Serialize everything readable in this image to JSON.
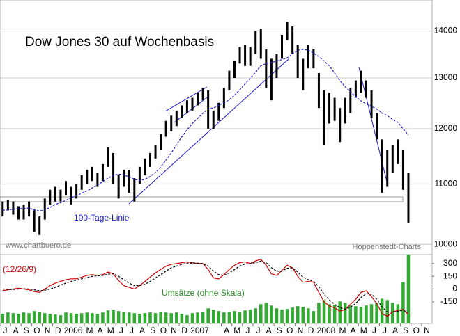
{
  "chart_data": {
    "type": "ohlc",
    "title": "Dow Jones 30 auf Wochenbasis",
    "source_left": "www.chartbuero.de",
    "source_right": "Hoppenstedt-Charts",
    "categories": [
      "J",
      null,
      "A",
      null,
      "S",
      null,
      "O",
      null,
      "N",
      null,
      "D",
      null,
      "2006",
      null,
      null,
      null,
      "M",
      null,
      "A",
      null,
      "M",
      null,
      "J",
      null,
      "J",
      null,
      "A",
      null,
      "S",
      null,
      "O",
      null,
      "N",
      null,
      "D",
      null,
      "2007",
      null,
      null,
      null,
      null,
      null,
      "A",
      null,
      "M",
      null,
      "J",
      null,
      "J",
      null,
      "A",
      null,
      "S",
      null,
      "O",
      null,
      "N",
      null,
      "D",
      null,
      "2008",
      null,
      null,
      null,
      "M",
      null,
      "A",
      null,
      "M",
      null,
      "J",
      null,
      "J",
      null,
      "A",
      null,
      "S",
      null,
      "O",
      null,
      "N",
      null
    ],
    "high": [
      10700,
      10720,
      10700,
      10620,
      10650,
      10700,
      10550,
      10450,
      10750,
      10900,
      10950,
      10900,
      11050,
      10950,
      11000,
      11150,
      11250,
      11300,
      11200,
      11350,
      11650,
      11550,
      11150,
      11250,
      11250,
      11100,
      11300,
      11450,
      11550,
      11700,
      11900,
      12150,
      12250,
      12350,
      12450,
      12550,
      12600,
      12700,
      12800,
      12750,
      12350,
      12500,
      12800,
      13150,
      13350,
      13650,
      13700,
      13650,
      14000,
      14050,
      13600,
      13400,
      13500,
      13900,
      14200,
      14100,
      13700,
      13400,
      13700,
      13600,
      13100,
      12750,
      12700,
      12600,
      12400,
      12600,
      12800,
      12950,
      13150,
      12950,
      12750,
      12300,
      11800,
      11600,
      11700,
      11800,
      11600,
      11200,
      null,
      null,
      null,
      null
    ],
    "low": [
      10450,
      10550,
      10480,
      10400,
      10400,
      10450,
      10200,
      10150,
      10400,
      10650,
      10700,
      10700,
      10800,
      10650,
      10750,
      10900,
      11000,
      11050,
      10950,
      11050,
      11300,
      11000,
      10750,
      10950,
      10850,
      10700,
      11000,
      11150,
      11300,
      11450,
      11600,
      11850,
      11950,
      12050,
      12200,
      12300,
      12350,
      12450,
      12550,
      12000,
      12000,
      12150,
      12400,
      12750,
      13000,
      13300,
      13250,
      13250,
      13500,
      13400,
      12800,
      12550,
      13000,
      13400,
      13800,
      13500,
      13000,
      12750,
      13200,
      13200,
      12400,
      11700,
      12100,
      12150,
      11750,
      12100,
      12300,
      12600,
      12700,
      12600,
      12200,
      11800,
      10850,
      10950,
      11200,
      11350,
      10900,
      10350,
      null,
      null,
      null,
      null
    ],
    "color": "#000000",
    "ylim": [
      9840,
      14700
    ],
    "yticks": [
      10000,
      11000,
      12000,
      13000,
      14000
    ],
    "log": true,
    "grid": true,
    "moving_average": {
      "name": "100-Tage-Linie",
      "color": "#1a1acc",
      "values": [
        10550,
        10560,
        10570,
        10580,
        10580,
        10590,
        10560,
        10540,
        10560,
        10600,
        10650,
        10680,
        10720,
        10760,
        10800,
        10840,
        10880,
        10930,
        10980,
        11040,
        11100,
        11150,
        11170,
        11160,
        11120,
        11080,
        11060,
        11080,
        11130,
        11200,
        11300,
        11420,
        11550,
        11700,
        11850,
        11980,
        12100,
        12200,
        12300,
        12380,
        12400,
        12450,
        12500,
        12560,
        12650,
        12760,
        12880,
        13000,
        13120,
        13250,
        13300,
        13320,
        13350,
        13380,
        13420,
        13500,
        13580,
        13600,
        13580,
        13520,
        13450,
        13350,
        13250,
        13100,
        12950,
        12820,
        12720,
        12620,
        12540,
        12480,
        12430,
        12380,
        12300,
        12250,
        12180,
        12120,
        12000,
        11880,
        null,
        null,
        null,
        null
      ]
    },
    "macd": {
      "label": "(12/26/9)",
      "ylim": [
        -405,
        405
      ],
      "yticks": [
        300,
        150,
        0,
        -150
      ],
      "series": [
        {
          "color": "#cc0000",
          "values": [
            -20,
            -10,
            0,
            10,
            0,
            -10,
            -30,
            -40,
            0,
            40,
            70,
            90,
            110,
            120,
            120,
            140,
            160,
            170,
            160,
            170,
            200,
            180,
            100,
            40,
            20,
            0,
            40,
            90,
            140,
            190,
            230,
            270,
            290,
            300,
            310,
            320,
            310,
            300,
            300,
            230,
            130,
            120,
            170,
            230,
            280,
            310,
            320,
            300,
            330,
            350,
            280,
            180,
            160,
            220,
            280,
            250,
            150,
            80,
            90,
            80,
            -40,
            -150,
            -200,
            -220,
            -260,
            -240,
            -180,
            -120,
            -40,
            -20,
            -90,
            -170,
            -290,
            -320,
            -270,
            -250,
            -240,
            -300,
            null,
            null,
            null,
            null
          ]
        },
        {
          "color": "#000000",
          "values": [
            0,
            -5,
            -5,
            0,
            2,
            0,
            -10,
            -20,
            -15,
            0,
            20,
            45,
            70,
            90,
            105,
            120,
            135,
            150,
            155,
            160,
            175,
            180,
            150,
            110,
            70,
            40,
            40,
            55,
            90,
            130,
            170,
            210,
            250,
            270,
            290,
            305,
            305,
            305,
            300,
            270,
            210,
            170,
            160,
            190,
            230,
            270,
            295,
            300,
            310,
            330,
            310,
            250,
            210,
            210,
            245,
            250,
            200,
            140,
            110,
            90,
            30,
            -60,
            -130,
            -180,
            -220,
            -235,
            -215,
            -170,
            -100,
            -55,
            -60,
            -120,
            -210,
            -270,
            -270,
            -260,
            -250,
            -275,
            null,
            null,
            null,
            null
          ]
        }
      ]
    },
    "volume": {
      "name": "Umsätze (ohne Skala)",
      "color": "#33aa33",
      "ylim": [
        0,
        100
      ],
      "values": [
        14,
        16,
        15,
        14,
        16,
        15,
        18,
        17,
        15,
        14,
        13,
        12,
        16,
        15,
        14,
        15,
        16,
        15,
        14,
        16,
        19,
        20,
        18,
        17,
        16,
        15,
        14,
        15,
        16,
        15,
        17,
        16,
        15,
        16,
        14,
        12,
        15,
        16,
        17,
        22,
        20,
        18,
        16,
        17,
        18,
        17,
        19,
        20,
        22,
        28,
        30,
        26,
        22,
        20,
        21,
        23,
        25,
        24,
        22,
        18,
        30,
        34,
        28,
        27,
        32,
        30,
        26,
        25,
        24,
        26,
        28,
        30,
        36,
        34,
        30,
        28,
        60,
        100,
        null,
        null,
        null,
        null
      ]
    }
  }
}
